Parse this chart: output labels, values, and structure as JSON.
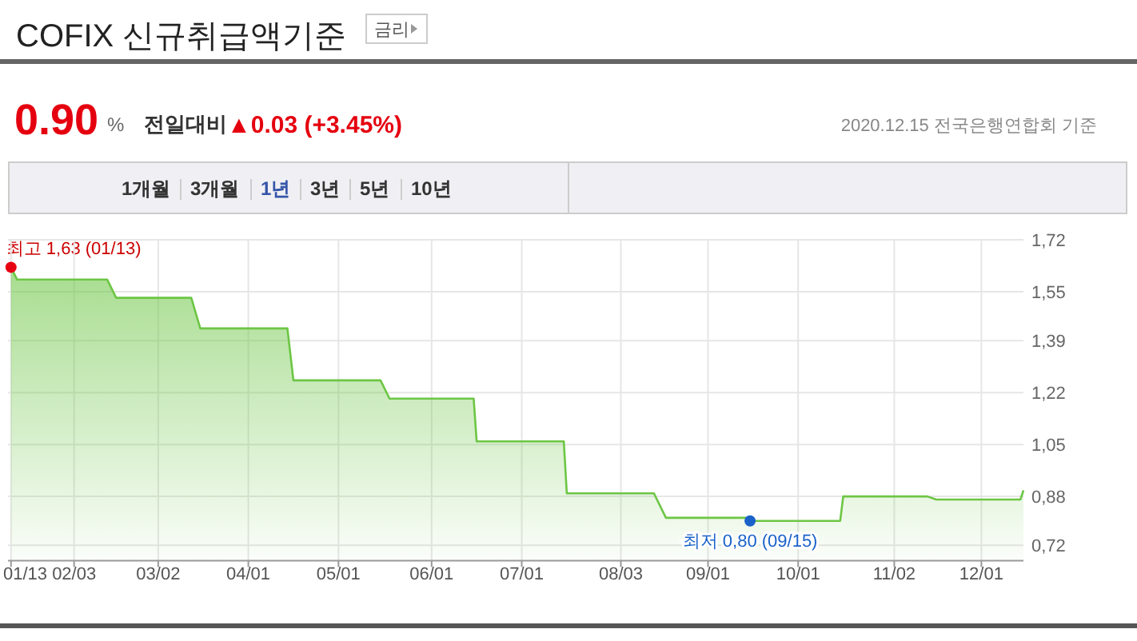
{
  "chart_data": {
    "type": "area",
    "title": "COFIX 신규취급액기준",
    "annotations": [
      "금리",
      "0.90",
      "%",
      "전일대비",
      "▲0.03 (+3.45%)",
      "2020.12.15 전국은행연합회 기준",
      "1개월",
      "3개월",
      "1년",
      "3년",
      "5년",
      "10년",
      {
        "text": "최고 1,63 (01/13)",
        "x": "2020-01-13",
        "y": 1.63
      },
      {
        "text": "최저 0,80 (09/15)",
        "x": "2020-09-15",
        "y": 0.8
      }
    ],
    "x": [
      "2020-01-13",
      "2020-01-15",
      "2020-02-14",
      "2020-02-17",
      "2020-03-13",
      "2020-03-16",
      "2020-04-14",
      "2020-04-16",
      "2020-05-15",
      "2020-05-18",
      "2020-06-15",
      "2020-06-16",
      "2020-07-15",
      "2020-07-16",
      "2020-08-14",
      "2020-08-18",
      "2020-09-14",
      "2020-09-15",
      "2020-10-15",
      "2020-10-16",
      "2020-11-13",
      "2020-11-16",
      "2020-12-14",
      "2020-12-15"
    ],
    "series": [
      {
        "color": "#6cc644",
        "values": [
          1.63,
          1.59,
          1.59,
          1.53,
          1.53,
          1.43,
          1.43,
          1.26,
          1.26,
          1.2,
          1.2,
          1.06,
          1.06,
          0.89,
          0.89,
          0.81,
          0.81,
          0.8,
          0.8,
          0.88,
          0.88,
          0.87,
          0.87,
          0.9
        ]
      }
    ],
    "xlim": [
      "2020-01-12",
      "2020-12-15"
    ],
    "xticks": [
      {
        "value": "2020-01-13",
        "label": "01/13"
      },
      {
        "value": "2020-02-03",
        "label": "02/03"
      },
      {
        "value": "2020-03-02",
        "label": "03/02"
      },
      {
        "value": "2020-04-01",
        "label": "04/01"
      },
      {
        "value": "2020-05-01",
        "label": "05/01"
      },
      {
        "value": "2020-06-01",
        "label": "06/01"
      },
      {
        "value": "2020-07-01",
        "label": "07/01"
      },
      {
        "value": "2020-08-03",
        "label": "08/03"
      },
      {
        "value": "2020-09-01",
        "label": "09/01"
      },
      {
        "value": "2020-10-01",
        "label": "10/01"
      },
      {
        "value": "2020-11-02",
        "label": "11/02"
      },
      {
        "value": "2020-12-01",
        "label": "12/01"
      }
    ],
    "ylim": [
      0.67,
      1.72
    ],
    "yticks": [
      {
        "value": 0.72,
        "label": "0,72"
      },
      {
        "value": 0.88,
        "label": "0,88"
      },
      {
        "value": 1.05,
        "label": "1,05"
      },
      {
        "value": 1.22,
        "label": "1,22"
      },
      {
        "value": 1.39,
        "label": "1,39"
      },
      {
        "value": 1.55,
        "label": "1,55"
      },
      {
        "value": 1.72,
        "label": "1,72"
      }
    ],
    "grid": true
  }
}
